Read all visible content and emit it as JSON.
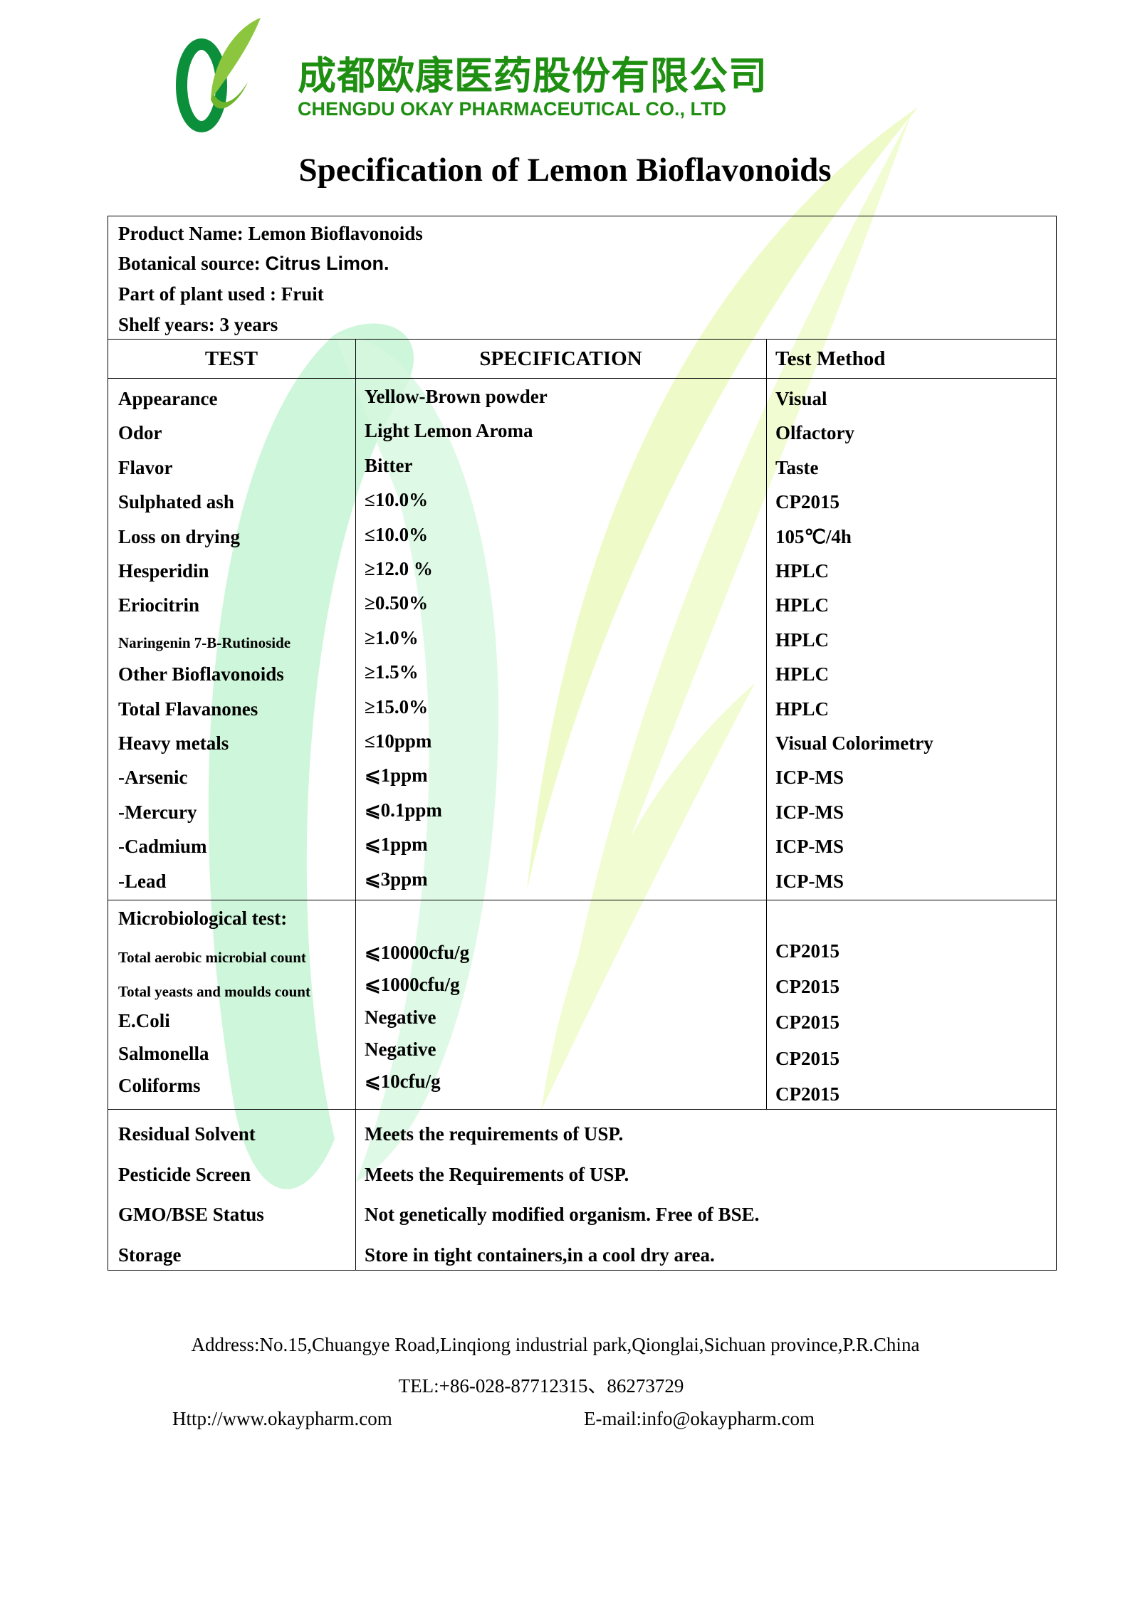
{
  "company": {
    "name_cn": "成都欧康医药股份有限公司",
    "name_en": "CHENGDU OKAY PHARMACEUTICAL CO., LTD",
    "brand_colors": {
      "dark_green": "#1f8f12",
      "leaf_green": "#8cc63f"
    }
  },
  "title": "Specification of Lemon Bioflavonoids",
  "product_info": {
    "product_name": "Product Name: Lemon Bioflavonoids",
    "botanical_label": "Botanical source: ",
    "botanical_value": "Citrus Limon.",
    "part_used": "Part of plant used : Fruit",
    "shelf": "Shelf years: 3 years"
  },
  "columns": {
    "test": "TEST",
    "spec": "SPECIFICATION",
    "method": "Test Method"
  },
  "rows": [
    {
      "test": "Appearance",
      "spec": "Yellow-Brown powder",
      "method": "Visual"
    },
    {
      "test": "Odor",
      "spec": "Light Lemon Aroma",
      "method": "Olfactory"
    },
    {
      "test": "Flavor",
      "spec": "Bitter",
      "method": "Taste"
    },
    {
      "test": "Sulphated ash",
      "spec": "≤10.0%",
      "method": "CP2015"
    },
    {
      "test": "Loss on drying",
      "spec": "≤10.0%",
      "method": "105℃/4h"
    },
    {
      "test": "Hesperidin",
      "spec": "≥12.0 %",
      "method": "HPLC"
    },
    {
      "test": "Eriocitrin",
      "spec": "≥0.50%",
      "method": "HPLC"
    },
    {
      "test": "Naringenin 7-B-Rutinoside",
      "spec": "≥1.0%",
      "method": "HPLC",
      "small": true
    },
    {
      "test": "Other Bioflavonoids",
      "spec": "≥1.5%",
      "method": "HPLC"
    },
    {
      "test": "Total Flavanones",
      "spec": "≥15.0%",
      "method": "HPLC"
    },
    {
      "test": "Heavy metals",
      "spec": "≤10ppm",
      "method": "Visual Colorimetry"
    },
    {
      "test": "-Arsenic",
      "spec": "⩽1ppm",
      "method": "ICP-MS"
    },
    {
      "test": "-Mercury",
      "spec": "⩽0.1ppm",
      "method": "ICP-MS"
    },
    {
      "test": "-Cadmium",
      "spec": "⩽1ppm",
      "method": "ICP-MS"
    },
    {
      "test": "-Lead",
      "spec": "⩽3ppm",
      "method": "ICP-MS"
    }
  ],
  "micro": {
    "heading": "Microbiological test:",
    "rows": [
      {
        "test": "Total aerobic microbial count",
        "spec": "⩽10000cfu/g",
        "method": "CP2015",
        "small": true
      },
      {
        "test": "Total yeasts and moulds count",
        "spec": "⩽1000cfu/g",
        "method": "CP2015",
        "small": true
      },
      {
        "test": "E.Coli",
        "spec": "Negative",
        "method": "CP2015"
      },
      {
        "test": "Salmonella",
        "spec": "Negative",
        "method": "CP2015"
      },
      {
        "test": "Coliforms",
        "spec": "⩽10cfu/g",
        "method": "CP2015"
      }
    ]
  },
  "other": [
    {
      "test": "Residual Solvent",
      "spec": "Meets the requirements of USP."
    },
    {
      "test": "Pesticide Screen",
      "spec": "Meets the Requirements of USP."
    },
    {
      "test": "GMO/BSE Status",
      "spec": "Not genetically modified organism. Free of BSE."
    },
    {
      "test": "Storage",
      "spec": "Store in tight containers,in a cool dry area."
    }
  ],
  "footer": {
    "address": "Address:No.15,Chuangye Road,Linqiong industrial park,Qionglai,Sichuan province,P.R.China",
    "tel": "TEL:+86-028-87712315、86273729",
    "web": "Http://www.okaypharm.com",
    "email": "E-mail:info@okaypharm.com"
  }
}
